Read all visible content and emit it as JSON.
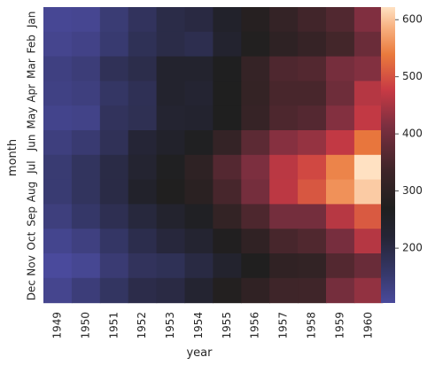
{
  "chart_data": {
    "type": "heatmap",
    "xlabel": "year",
    "ylabel": "month",
    "x": [
      "1949",
      "1950",
      "1951",
      "1952",
      "1953",
      "1954",
      "1955",
      "1956",
      "1957",
      "1958",
      "1959",
      "1960"
    ],
    "y": [
      "Jan",
      "Feb",
      "Mar",
      "Apr",
      "May",
      "Jun",
      "Jul",
      "Aug",
      "Sep",
      "Oct",
      "Nov",
      "Dec"
    ],
    "values": [
      [
        112,
        115,
        145,
        171,
        196,
        204,
        242,
        284,
        315,
        340,
        360,
        417
      ],
      [
        118,
        126,
        150,
        180,
        196,
        188,
        233,
        277,
        301,
        318,
        342,
        391
      ],
      [
        132,
        141,
        178,
        193,
        236,
        235,
        267,
        317,
        356,
        362,
        406,
        419
      ],
      [
        129,
        135,
        163,
        181,
        235,
        227,
        269,
        313,
        348,
        348,
        396,
        461
      ],
      [
        121,
        125,
        172,
        183,
        229,
        234,
        270,
        318,
        355,
        363,
        420,
        472
      ],
      [
        135,
        149,
        178,
        218,
        243,
        264,
        315,
        374,
        422,
        435,
        472,
        535
      ],
      [
        148,
        170,
        199,
        230,
        264,
        302,
        364,
        413,
        465,
        491,
        548,
        622
      ],
      [
        148,
        170,
        199,
        242,
        272,
        293,
        347,
        405,
        467,
        505,
        559,
        606
      ],
      [
        136,
        158,
        184,
        209,
        237,
        259,
        312,
        355,
        404,
        404,
        463,
        508
      ],
      [
        119,
        133,
        162,
        191,
        211,
        229,
        274,
        306,
        347,
        359,
        407,
        461
      ],
      [
        104,
        114,
        146,
        172,
        180,
        203,
        237,
        271,
        305,
        310,
        362,
        390
      ],
      [
        118,
        140,
        166,
        194,
        201,
        229,
        278,
        306,
        336,
        337,
        405,
        432
      ]
    ],
    "vmin": 104,
    "vmax": 622,
    "colormap": "icefire",
    "colorbar_ticks": [
      200,
      300,
      400,
      500,
      600
    ],
    "grid": false
  }
}
